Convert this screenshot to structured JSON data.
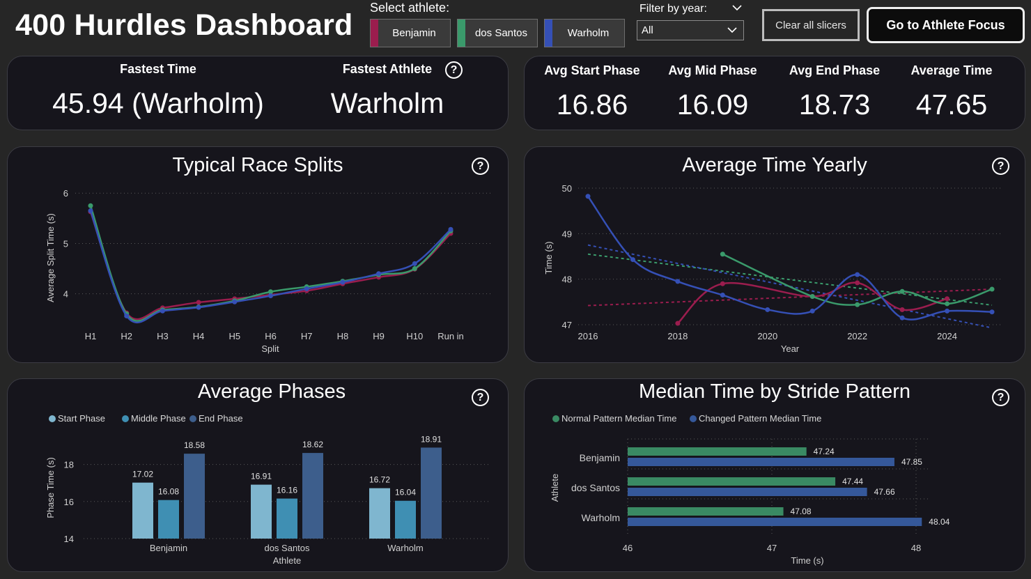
{
  "header": {
    "title": "400 Hurdles Dashboard",
    "select_athlete_label": "Select athlete:",
    "athletes": [
      {
        "label": "Benjamin",
        "color": "#9b1d4e"
      },
      {
        "label": "dos Santos",
        "color": "#3a9a6b"
      },
      {
        "label": "Warholm",
        "color": "#3550b6"
      }
    ],
    "filter_year_label": "Filter by year:",
    "year_selected": "All",
    "clear_label": "Clear all slicers",
    "go_label": "Go to Athlete Focus"
  },
  "kpi_left": {
    "fastest_time_label": "Fastest Time",
    "fastest_time_value": "45.94 (Warholm)",
    "fastest_athlete_label": "Fastest Athlete",
    "fastest_athlete_value": "Warholm",
    "help": "?"
  },
  "kpi_right": {
    "items": [
      {
        "label": "Avg Start Phase",
        "value": "16.86"
      },
      {
        "label": "Avg Mid Phase",
        "value": "16.09"
      },
      {
        "label": "Avg End Phase",
        "value": "18.73"
      },
      {
        "label": "Average Time",
        "value": "47.65"
      }
    ]
  },
  "help_glyph": "?",
  "colors": {
    "benjamin": "#9b1d4e",
    "dos_santos": "#3a9a6b",
    "warholm": "#3550b6"
  },
  "chart_data": [
    {
      "id": "splits",
      "type": "line",
      "title": "Typical Race Splits",
      "xlabel": "Split",
      "ylabel": "Average Split Time (s)",
      "categories": [
        "H1",
        "H2",
        "H3",
        "H4",
        "H5",
        "H6",
        "H7",
        "H8",
        "H9",
        "H10",
        "Run in"
      ],
      "ylim": [
        3.4,
        6.1
      ],
      "yticks": [
        4,
        5,
        6
      ],
      "series": [
        {
          "name": "Benjamin",
          "color": "#9b1d4e",
          "values": [
            5.63,
            3.62,
            3.72,
            3.83,
            3.9,
            3.98,
            4.06,
            4.2,
            4.33,
            4.49,
            5.2
          ]
        },
        {
          "name": "dos Santos",
          "color": "#3a9a6b",
          "values": [
            5.75,
            3.6,
            3.68,
            3.74,
            3.86,
            4.04,
            4.14,
            4.25,
            4.38,
            4.5,
            5.25
          ]
        },
        {
          "name": "Warholm",
          "color": "#3550b6",
          "values": [
            5.65,
            3.56,
            3.66,
            3.73,
            3.84,
            3.96,
            4.1,
            4.23,
            4.4,
            4.6,
            5.28
          ]
        }
      ]
    },
    {
      "id": "yearly",
      "type": "line",
      "title": "Average Time Yearly",
      "xlabel": "Year",
      "ylabel": "Time (s)",
      "xlim": [
        2015.8,
        2025.2
      ],
      "xticks": [
        2016,
        2018,
        2020,
        2022,
        2024
      ],
      "ylim": [
        46.95,
        50
      ],
      "yticks": [
        47,
        48,
        49,
        50
      ],
      "series": [
        {
          "name": "Benjamin",
          "color": "#9b1d4e",
          "x": [
            2018,
            2019,
            2021,
            2022,
            2023,
            2024
          ],
          "values": [
            47.03,
            47.9,
            47.62,
            47.92,
            47.33,
            47.57
          ],
          "trend": [
            47.42,
            47.78
          ]
        },
        {
          "name": "dos Santos",
          "color": "#3a9a6b",
          "x": [
            2019,
            2021,
            2022,
            2023,
            2024,
            2025
          ],
          "values": [
            48.55,
            47.62,
            47.44,
            47.73,
            47.46,
            47.78
          ],
          "trend": [
            48.55,
            47.43
          ]
        },
        {
          "name": "Warholm",
          "color": "#3550b6",
          "x": [
            2016,
            2017,
            2018,
            2019,
            2020,
            2021,
            2022,
            2023,
            2024,
            2025
          ],
          "values": [
            49.82,
            48.43,
            47.95,
            47.65,
            47.33,
            47.3,
            48.1,
            47.15,
            47.3,
            47.28
          ],
          "trend": [
            48.75,
            46.93
          ]
        }
      ]
    },
    {
      "id": "phases",
      "type": "bar",
      "title": "Average Phases",
      "xlabel": "Athlete",
      "ylabel": "Phase Time (s)",
      "categories": [
        "Benjamin",
        "dos Santos",
        "Warholm"
      ],
      "ylim": [
        14,
        19.5
      ],
      "yticks": [
        14,
        16,
        18
      ],
      "series": [
        {
          "name": "Start Phase",
          "color": "#7fb6cf",
          "values": [
            17.02,
            16.91,
            16.72
          ]
        },
        {
          "name": "Middle Phase",
          "color": "#3f8fb3",
          "values": [
            16.08,
            16.16,
            16.04
          ]
        },
        {
          "name": "End Phase",
          "color": "#3d5e8c",
          "values": [
            18.58,
            18.62,
            18.91
          ]
        }
      ]
    },
    {
      "id": "stride",
      "type": "bar",
      "orientation": "horizontal",
      "title": "Median Time by Stride Pattern",
      "xlabel": "Time (s)",
      "ylabel": "Athlete",
      "categories": [
        "Benjamin",
        "dos Santos",
        "Warholm"
      ],
      "xlim": [
        46,
        48.2
      ],
      "xticks": [
        46,
        47,
        48
      ],
      "series": [
        {
          "name": "Normal Pattern Median Time",
          "color": "#3a8a63",
          "values": [
            47.24,
            47.44,
            47.08
          ]
        },
        {
          "name": "Changed Pattern Median Time",
          "color": "#35589a",
          "values": [
            47.85,
            47.66,
            48.04
          ]
        }
      ]
    }
  ]
}
